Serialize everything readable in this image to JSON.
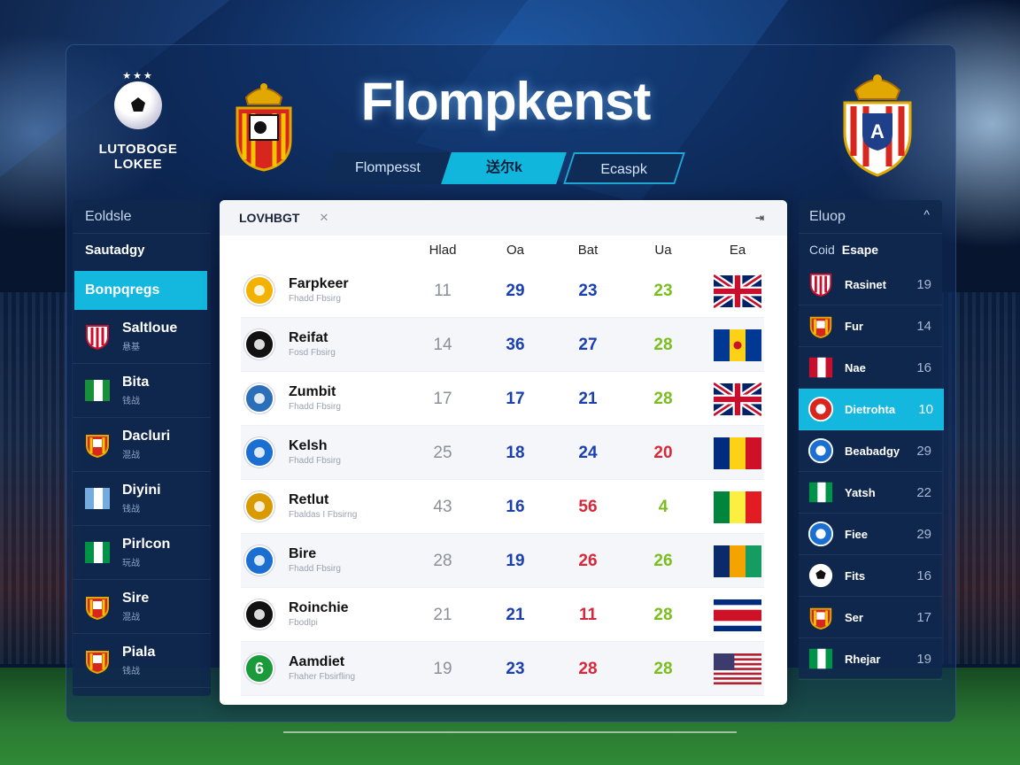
{
  "brand": {
    "line1": "LUTOBOGE",
    "line2": "LOKEE",
    "stars": "★★★"
  },
  "title": "Flompkenst",
  "tabs": [
    {
      "label": "Flompesst",
      "active": false
    },
    {
      "label": "送尔k",
      "active": true
    },
    {
      "label": "Ecaspk",
      "active": false
    }
  ],
  "left_sidebar": {
    "header": "Eoldsle",
    "subheader": "Sautadgy",
    "active": "Bonpqregs",
    "items": [
      {
        "name": "Saltloue",
        "sub": "悬基",
        "icon": "shield-icon",
        "color": "#c8102e"
      },
      {
        "name": "Bita",
        "sub": "钱战",
        "icon": "flag-icon",
        "color": "#1a8f3a"
      },
      {
        "name": "Dacluri",
        "sub": "混战",
        "icon": "crest-icon",
        "color": "#d99a00"
      },
      {
        "name": "Diyini",
        "sub": "钱战",
        "icon": "flag-icon",
        "color": "#74acdf"
      },
      {
        "name": "Pirlcon",
        "sub": "玩战",
        "icon": "flag-icon",
        "color": "#009246"
      },
      {
        "name": "Sire",
        "sub": "混战",
        "icon": "crest-icon",
        "color": "#d99a00"
      },
      {
        "name": "Piala",
        "sub": "钱战",
        "icon": "crest-icon",
        "color": "#d99a00"
      }
    ]
  },
  "table": {
    "title": "LOVHBGT",
    "close_symbol": "✕",
    "arrow_symbol": "⇥",
    "columns": [
      "Hlad",
      "Oa",
      "Bat",
      "Ua",
      "Ea"
    ],
    "rows": [
      {
        "name": "Farpkeer",
        "sub": "Fhadd Fbsirg",
        "v1": "11",
        "v2": "29",
        "v3": "23",
        "v4": "23",
        "v3_color": "blue",
        "logo": "#f3b200",
        "flag": "uk"
      },
      {
        "name": "Reifat",
        "sub": "Fosd Fbsirg",
        "v1": "14",
        "v2": "36",
        "v3": "27",
        "v4": "28",
        "v3_color": "blue",
        "logo": "#111111",
        "flag": "col"
      },
      {
        "name": "Zumbit",
        "sub": "Fhadd Fbsirg",
        "v1": "17",
        "v2": "17",
        "v3": "21",
        "v4": "28",
        "v3_color": "blue",
        "logo": "#2a6fb8",
        "flag": "uk"
      },
      {
        "name": "Kelsh",
        "sub": "Fhadd Fbsirg",
        "v1": "25",
        "v2": "18",
        "v3": "24",
        "v4": "20",
        "v3_color": "blue",
        "v4_color": "red",
        "logo": "#1a6fd0",
        "flag": "rom"
      },
      {
        "name": "Retlut",
        "sub": "Fbaldas I Fbsirng",
        "v1": "43",
        "v2": "16",
        "v3": "56",
        "v4": "4",
        "v3_color": "red",
        "logo": "#d99a00",
        "flag": "sen"
      },
      {
        "name": "Bire",
        "sub": "Fhadd Fbsirg",
        "v1": "28",
        "v2": "19",
        "v3": "26",
        "v4": "26",
        "v3_color": "red",
        "logo": "#1a6fd0",
        "flag": "ire"
      },
      {
        "name": "Roinchie",
        "sub": "Fbodlpi",
        "v1": "21",
        "v2": "21",
        "v3": "11",
        "v4": "28",
        "v3_color": "red",
        "logo": "#111111",
        "flag": "cr"
      },
      {
        "name": "Aamdiet",
        "sub": "Fhaher Fbsirfling",
        "v1": "19",
        "v2": "23",
        "v3": "28",
        "v4": "28",
        "v3_color": "red",
        "logo": "#1a9a3a",
        "logo_text": "6",
        "flag": "us"
      }
    ]
  },
  "right_sidebar": {
    "header": "Eluop",
    "up_symbol": "^",
    "sub_label": "Coid",
    "sub_value": "Esape",
    "items": [
      {
        "name": "Rasinet",
        "value": "19",
        "icon": "shield-icon"
      },
      {
        "name": "Fur",
        "value": "14",
        "icon": "crest-icon"
      },
      {
        "name": "Nae",
        "value": "16",
        "icon": "flag-icon"
      },
      {
        "name": "Dietrohta",
        "value": "10",
        "icon": "logo-icon",
        "highlight": true
      },
      {
        "name": "Beabadgy",
        "value": "29",
        "icon": "logo-icon"
      },
      {
        "name": "Yatsh",
        "value": "22",
        "icon": "flag-icon"
      },
      {
        "name": "Fiee",
        "value": "29",
        "icon": "logo-icon"
      },
      {
        "name": "Fits",
        "value": "16",
        "icon": "ball-icon"
      },
      {
        "name": "Ser",
        "value": "17",
        "icon": "crest-icon"
      },
      {
        "name": "Rhejar",
        "value": "19",
        "icon": "flag-icon"
      }
    ]
  },
  "crest_right_letter": "A"
}
